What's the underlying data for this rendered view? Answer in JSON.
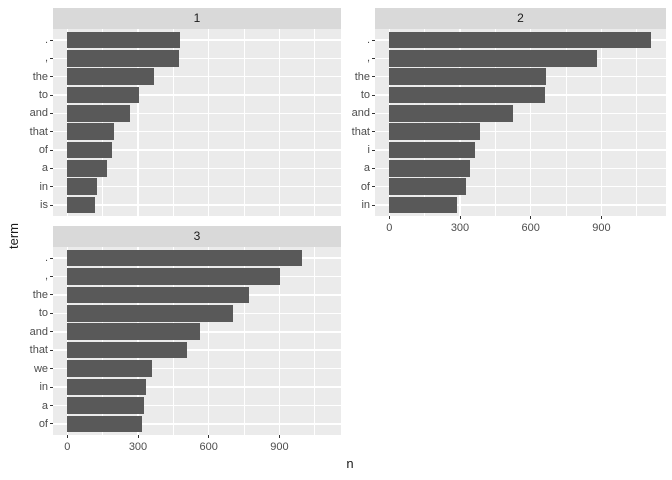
{
  "chart_data": {
    "type": "bar",
    "orientation": "horizontal",
    "title": "",
    "xlabel": "n",
    "ylabel": "term",
    "x_ticks": [
      0,
      300,
      600,
      900
    ],
    "x_minor_ticks": [
      150,
      450,
      750,
      1050
    ],
    "xlim_units_shown": [
      0,
      1160
    ],
    "grid": "on",
    "legend": "none",
    "theme": "ggplot2-grey-facets",
    "facets": [
      {
        "label": "1",
        "categories": [
          ".",
          ",",
          "the",
          "to",
          "and",
          "that",
          "of",
          "a",
          "in",
          "is"
        ],
        "values": [
          480,
          474,
          368,
          303,
          265,
          198,
          188,
          170,
          124,
          117
        ]
      },
      {
        "label": "2",
        "categories": [
          ".",
          ",",
          "the",
          "to",
          "and",
          "that",
          "i",
          "a",
          "of",
          "in"
        ],
        "values": [
          1110,
          881,
          665,
          659,
          525,
          384,
          364,
          341,
          324,
          288
        ]
      },
      {
        "label": "3",
        "categories": [
          ".",
          ",",
          "the",
          "to",
          "and",
          "that",
          "we",
          "in",
          "a",
          "of"
        ],
        "values": [
          995,
          901,
          771,
          704,
          564,
          509,
          361,
          333,
          327,
          318
        ]
      }
    ],
    "colors": {
      "bar": "#595959",
      "panel_background": "#EBEBEB",
      "strip_background": "#D9D9D9",
      "gridline": "#FFFFFF",
      "axis_text": "#4D4D4D",
      "title_text": "#1A1A1A",
      "tick_mark": "#333333",
      "background": "#FFFFFF"
    }
  }
}
